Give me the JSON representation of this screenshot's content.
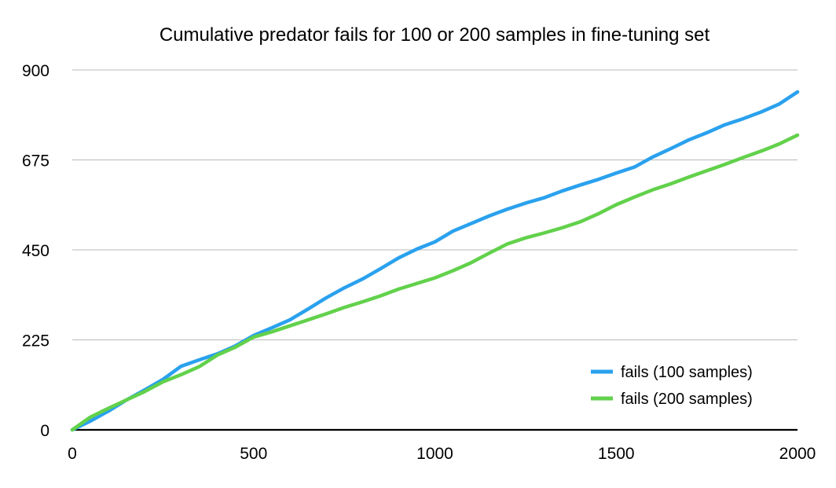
{
  "chart_data": {
    "type": "line",
    "title": "Cumulative predator fails for 100 or 200 samples in fine-tuning set",
    "xlabel": "",
    "ylabel": "",
    "xlim": [
      0,
      2000
    ],
    "ylim": [
      0,
      900
    ],
    "xticks": [
      0,
      500,
      1000,
      1500,
      2000
    ],
    "xtick_labels": [
      "0",
      "500",
      "1000",
      "1500",
      "2000"
    ],
    "yticks": [
      0,
      225,
      450,
      675,
      900
    ],
    "ytick_labels": [
      "0",
      "225",
      "450",
      "675",
      "900"
    ],
    "grid": true,
    "legend_position": "bottom-right",
    "x": [
      0,
      50,
      100,
      150,
      200,
      250,
      300,
      350,
      400,
      450,
      500,
      550,
      600,
      650,
      700,
      750,
      800,
      850,
      900,
      950,
      1000,
      1050,
      1100,
      1150,
      1200,
      1250,
      1300,
      1350,
      1400,
      1450,
      1500,
      1550,
      1600,
      1650,
      1700,
      1750,
      1800,
      1850,
      1900,
      1950,
      2000
    ],
    "series": [
      {
        "name": "fails (100 samples)",
        "color": "#2aa1ee",
        "values": [
          0,
          22,
          47,
          75,
          100,
          126,
          159,
          175,
          190,
          210,
          236,
          255,
          275,
          302,
          330,
          355,
          377,
          403,
          430,
          452,
          470,
          497,
          516,
          535,
          552,
          567,
          580,
          597,
          612,
          626,
          642,
          657,
          682,
          703,
          725,
          743,
          763,
          778,
          795,
          815,
          845
        ]
      },
      {
        "name": "fails (200 samples)",
        "color": "#62d14b",
        "values": [
          0,
          32,
          54,
          75,
          96,
          120,
          138,
          158,
          187,
          207,
          232,
          245,
          260,
          275,
          290,
          306,
          320,
          335,
          352,
          366,
          380,
          398,
          418,
          442,
          465,
          480,
          492,
          505,
          520,
          540,
          563,
          582,
          600,
          615,
          632,
          648,
          664,
          681,
          697,
          715,
          737
        ]
      }
    ]
  }
}
